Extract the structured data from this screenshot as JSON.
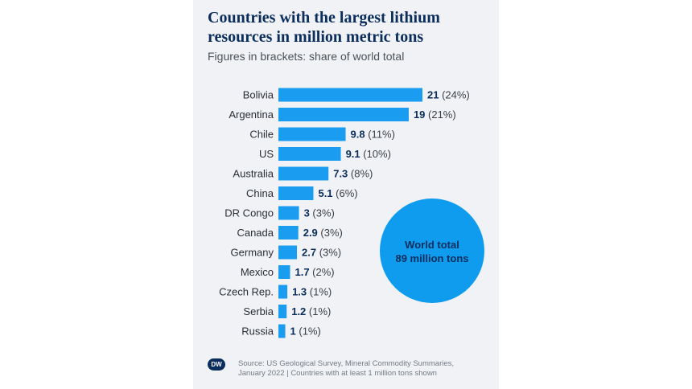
{
  "chart_data": {
    "type": "bar",
    "orientation": "horizontal",
    "title": "Countries with the largest lithium resources in million metric tons",
    "subtitle": "Figures in brackets: share of world total",
    "categories": [
      "Bolivia",
      "Argentina",
      "Chile",
      "US",
      "Australia",
      "China",
      "DR Congo",
      "Canada",
      "Germany",
      "Mexico",
      "Czech Rep.",
      "Serbia",
      "Russia"
    ],
    "values": [
      21,
      19,
      9.8,
      9.1,
      7.3,
      5.1,
      3,
      2.9,
      2.7,
      1.7,
      1.3,
      1.2,
      1
    ],
    "value_labels": [
      "21",
      "19",
      "9.8",
      "9.1",
      "7.3",
      "5.1",
      "3",
      "2.9",
      "2.7",
      "1.7",
      "1.3",
      "1.2",
      "1"
    ],
    "shares": [
      "(24%)",
      "(21%)",
      "(11%)",
      "(10%)",
      "(8%)",
      "(6%)",
      "(3%)",
      "(3%)",
      "(3%)",
      "(2%)",
      "(1%)",
      "(1%)",
      "(1%)"
    ],
    "annotation": [
      "World total",
      "89 million tons"
    ],
    "xlim": [
      0,
      21
    ],
    "colors": {
      "bar": "#1a9df0",
      "circle": "#0f9cef",
      "text": "#0a2d5c",
      "label": "#2a2f36"
    }
  },
  "source": "Source: US Geological Survey, Mineral Commodity Summaries, January 2022 | Countries with at least 1 million tons shown",
  "logo": "DW"
}
